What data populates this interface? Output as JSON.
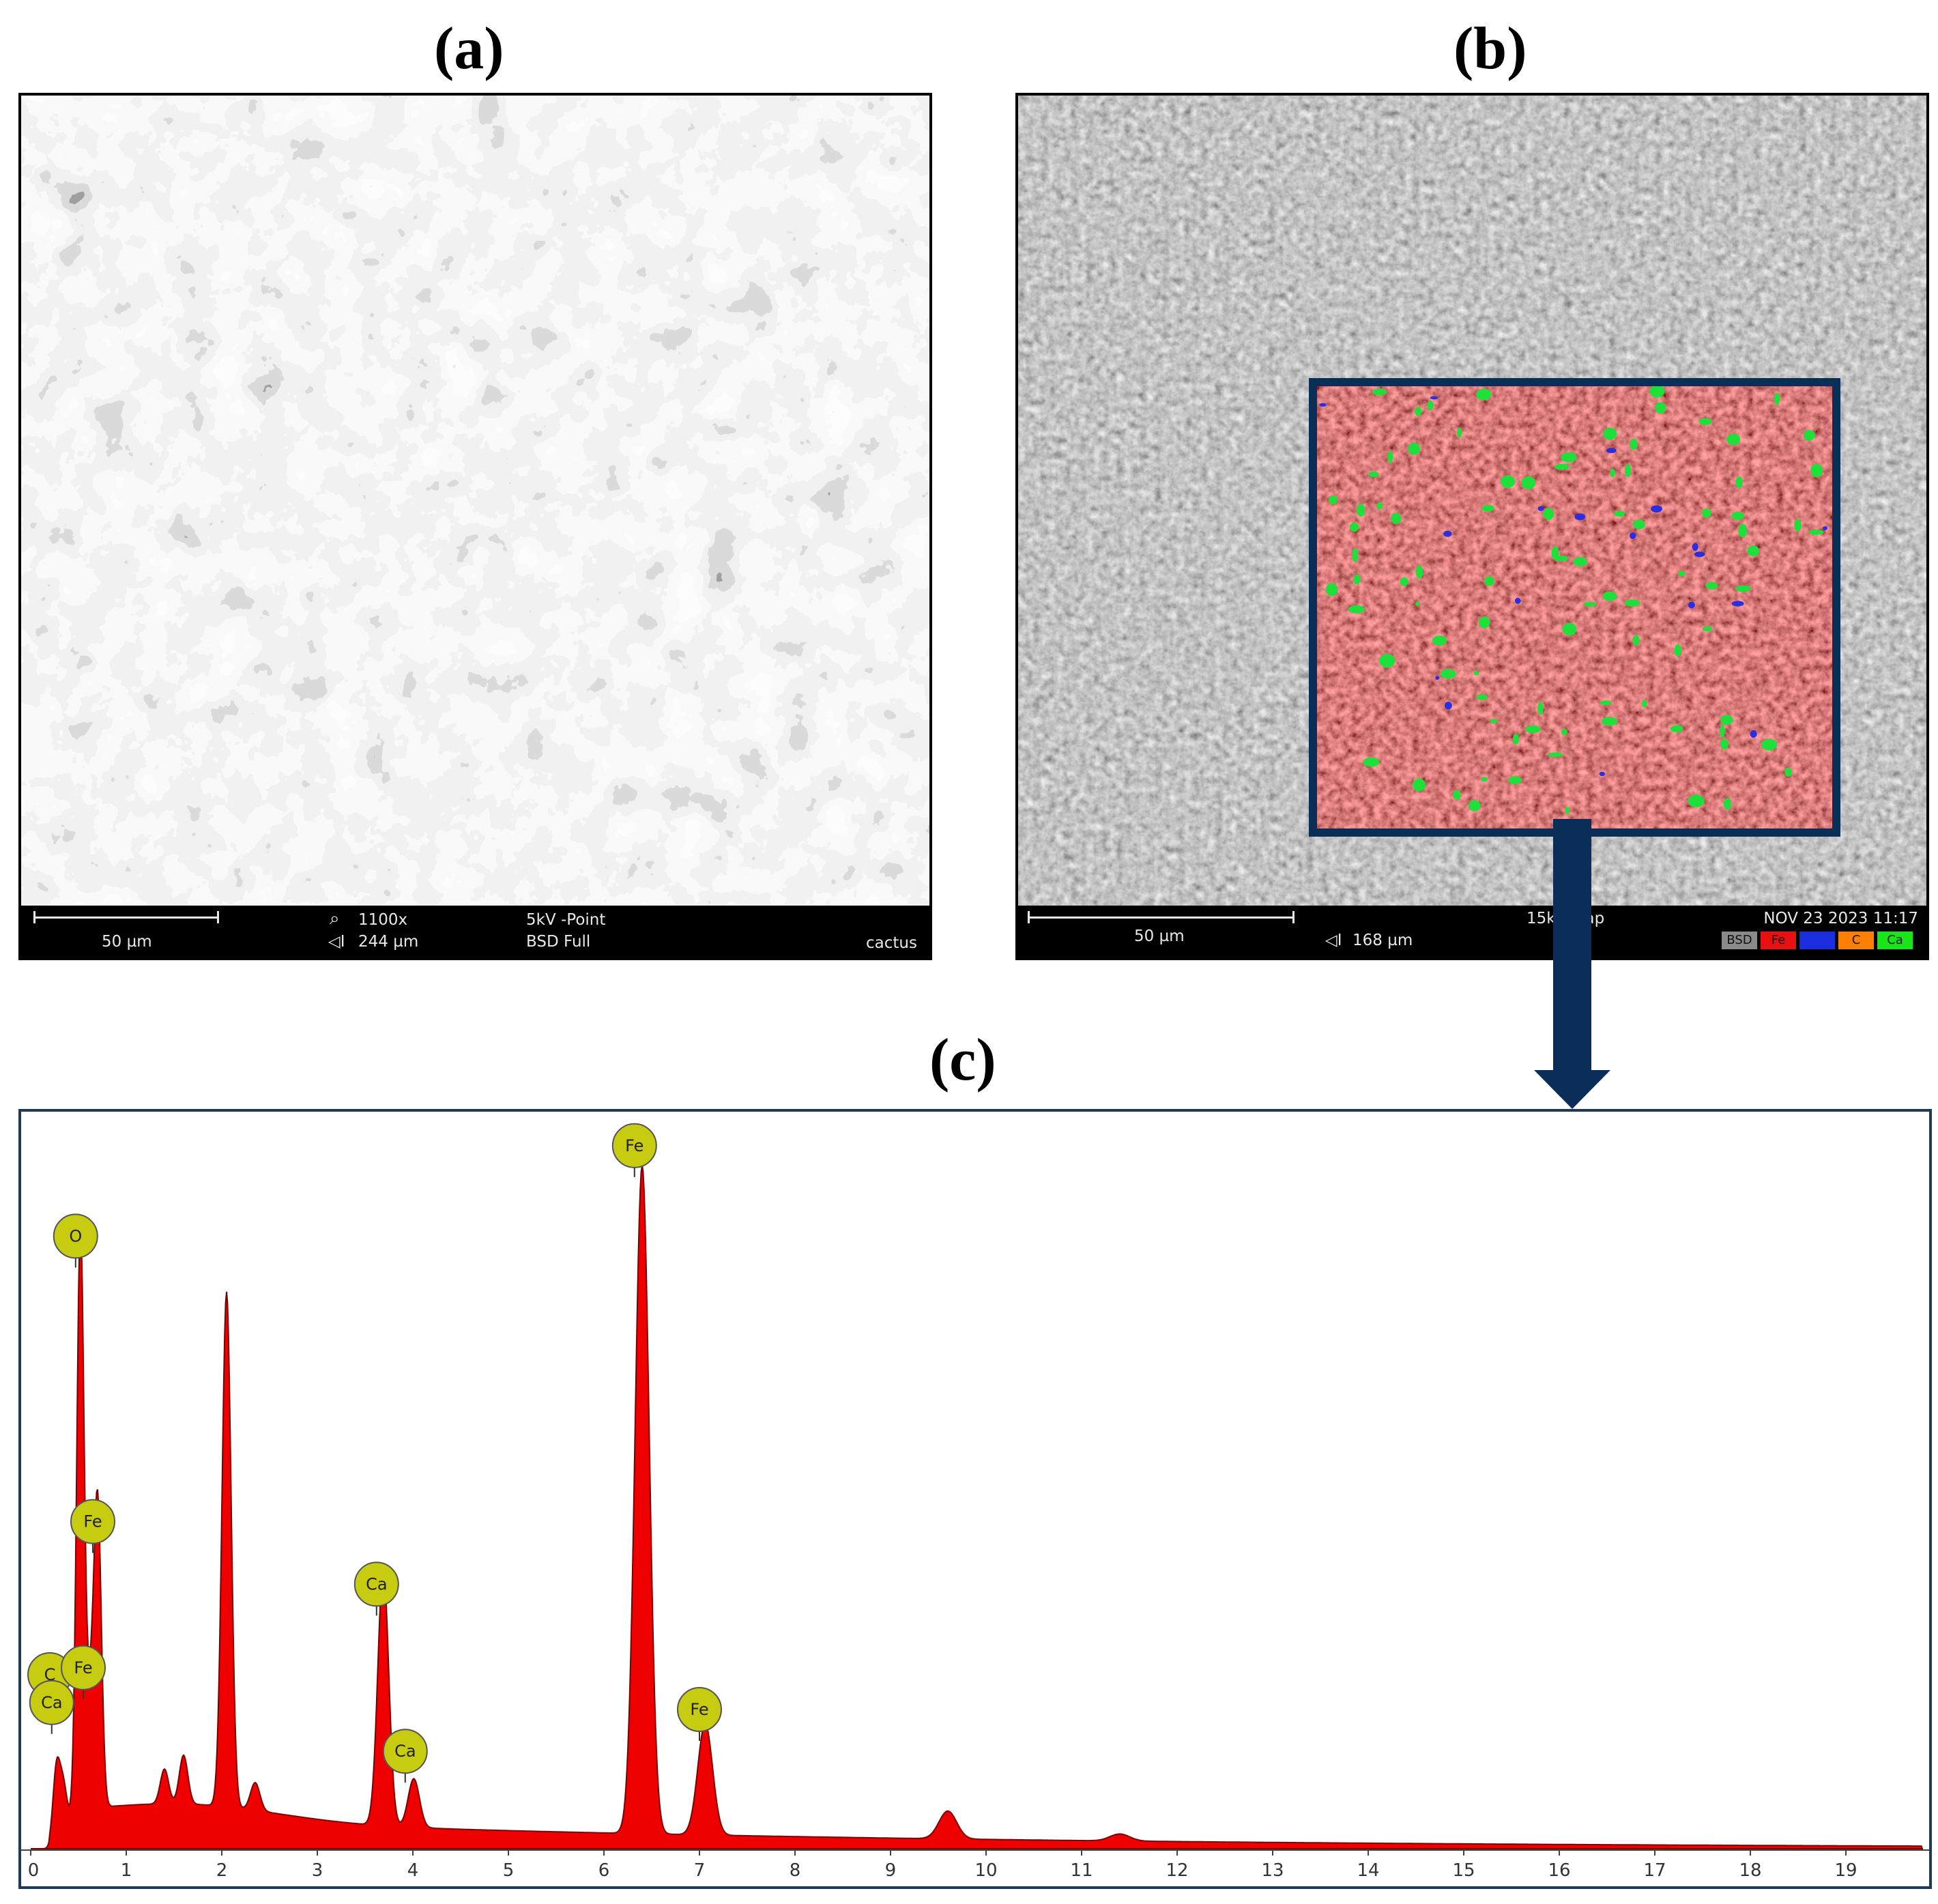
{
  "panels": {
    "a_label": "(a)",
    "b_label": "(b)",
    "c_label": "(c)"
  },
  "sem_a": {
    "scale": "50 µm",
    "magnification": "1100x",
    "field_width": "244 µm",
    "voltage_mode": "5kV -Point",
    "detector": "BSD Full",
    "sample": "cactus"
  },
  "sem_b": {
    "scale": "50 µm",
    "field_width": "168 µm",
    "mode": "15kV Map",
    "datetime": "NOV 23 2023 11:17",
    "channels": [
      {
        "label": "BSD",
        "color": "#8a8a8a"
      },
      {
        "label": "Fe",
        "color": "#e81010"
      },
      {
        "label": "",
        "color": "#1a2ee0"
      },
      {
        "label": "C",
        "color": "#ff7f00"
      },
      {
        "label": "Ca",
        "color": "#19e619"
      }
    ]
  },
  "colors": {
    "spectrum_fill": "#ee0000",
    "spectrum_edge": "#7a0000",
    "peak_marker": "#c8cc10",
    "frame_blue": "#0b2e58",
    "map_overlay_red": "#e24545",
    "map_green": "#1ee03a",
    "map_blue": "#2a2ee0"
  },
  "chart_data": {
    "type": "area",
    "x_ticks": [
      "0",
      "1",
      "2",
      "3",
      "4",
      "5",
      "6",
      "7",
      "8",
      "9",
      "10",
      "11",
      "12",
      "13",
      "14",
      "15",
      "16",
      "17",
      "18",
      "19"
    ],
    "xlim": [
      0,
      19.8
    ],
    "ylim": [
      0,
      1.0
    ],
    "grid": false,
    "peaks": [
      {
        "label": "C",
        "energy": 0.27,
        "height": 0.1
      },
      {
        "label": "Ca",
        "energy": 0.34,
        "height": 0.06
      },
      {
        "label": "O",
        "energy": 0.52,
        "height": 0.84
      },
      {
        "label": "Fe",
        "energy": 0.62,
        "height": 0.14
      },
      {
        "label": "Fe",
        "energy": 0.7,
        "height": 0.44
      },
      {
        "label": "",
        "energy": 1.4,
        "height": 0.05
      },
      {
        "label": "",
        "energy": 1.6,
        "height": 0.07
      },
      {
        "label": "",
        "energy": 2.05,
        "height": 0.74
      },
      {
        "label": "",
        "energy": 2.35,
        "height": 0.04
      },
      {
        "label": "Ca",
        "energy": 3.69,
        "height": 0.37
      },
      {
        "label": "Ca",
        "energy": 4.01,
        "height": 0.07
      },
      {
        "label": "Fe",
        "energy": 6.4,
        "height": 0.96
      },
      {
        "label": "Fe",
        "energy": 7.06,
        "height": 0.16
      },
      {
        "label": "",
        "energy": 9.6,
        "height": 0.04
      },
      {
        "label": "",
        "energy": 11.4,
        "height": 0.01
      }
    ],
    "markers": [
      {
        "label": "O",
        "energy": 0.47,
        "height": 0.88
      },
      {
        "label": "Fe",
        "energy": 0.65,
        "height": 0.47
      },
      {
        "label": "C",
        "energy": 0.2,
        "height": 0.25
      },
      {
        "label": "Ca",
        "energy": 0.22,
        "height": 0.21
      },
      {
        "label": "Fe",
        "energy": 0.55,
        "height": 0.26
      },
      {
        "label": "Ca",
        "energy": 3.62,
        "height": 0.38
      },
      {
        "label": "Ca",
        "energy": 3.92,
        "height": 0.14
      },
      {
        "label": "Fe",
        "energy": 6.32,
        "height": 1.01
      },
      {
        "label": "Fe",
        "energy": 7.0,
        "height": 0.2
      }
    ]
  }
}
